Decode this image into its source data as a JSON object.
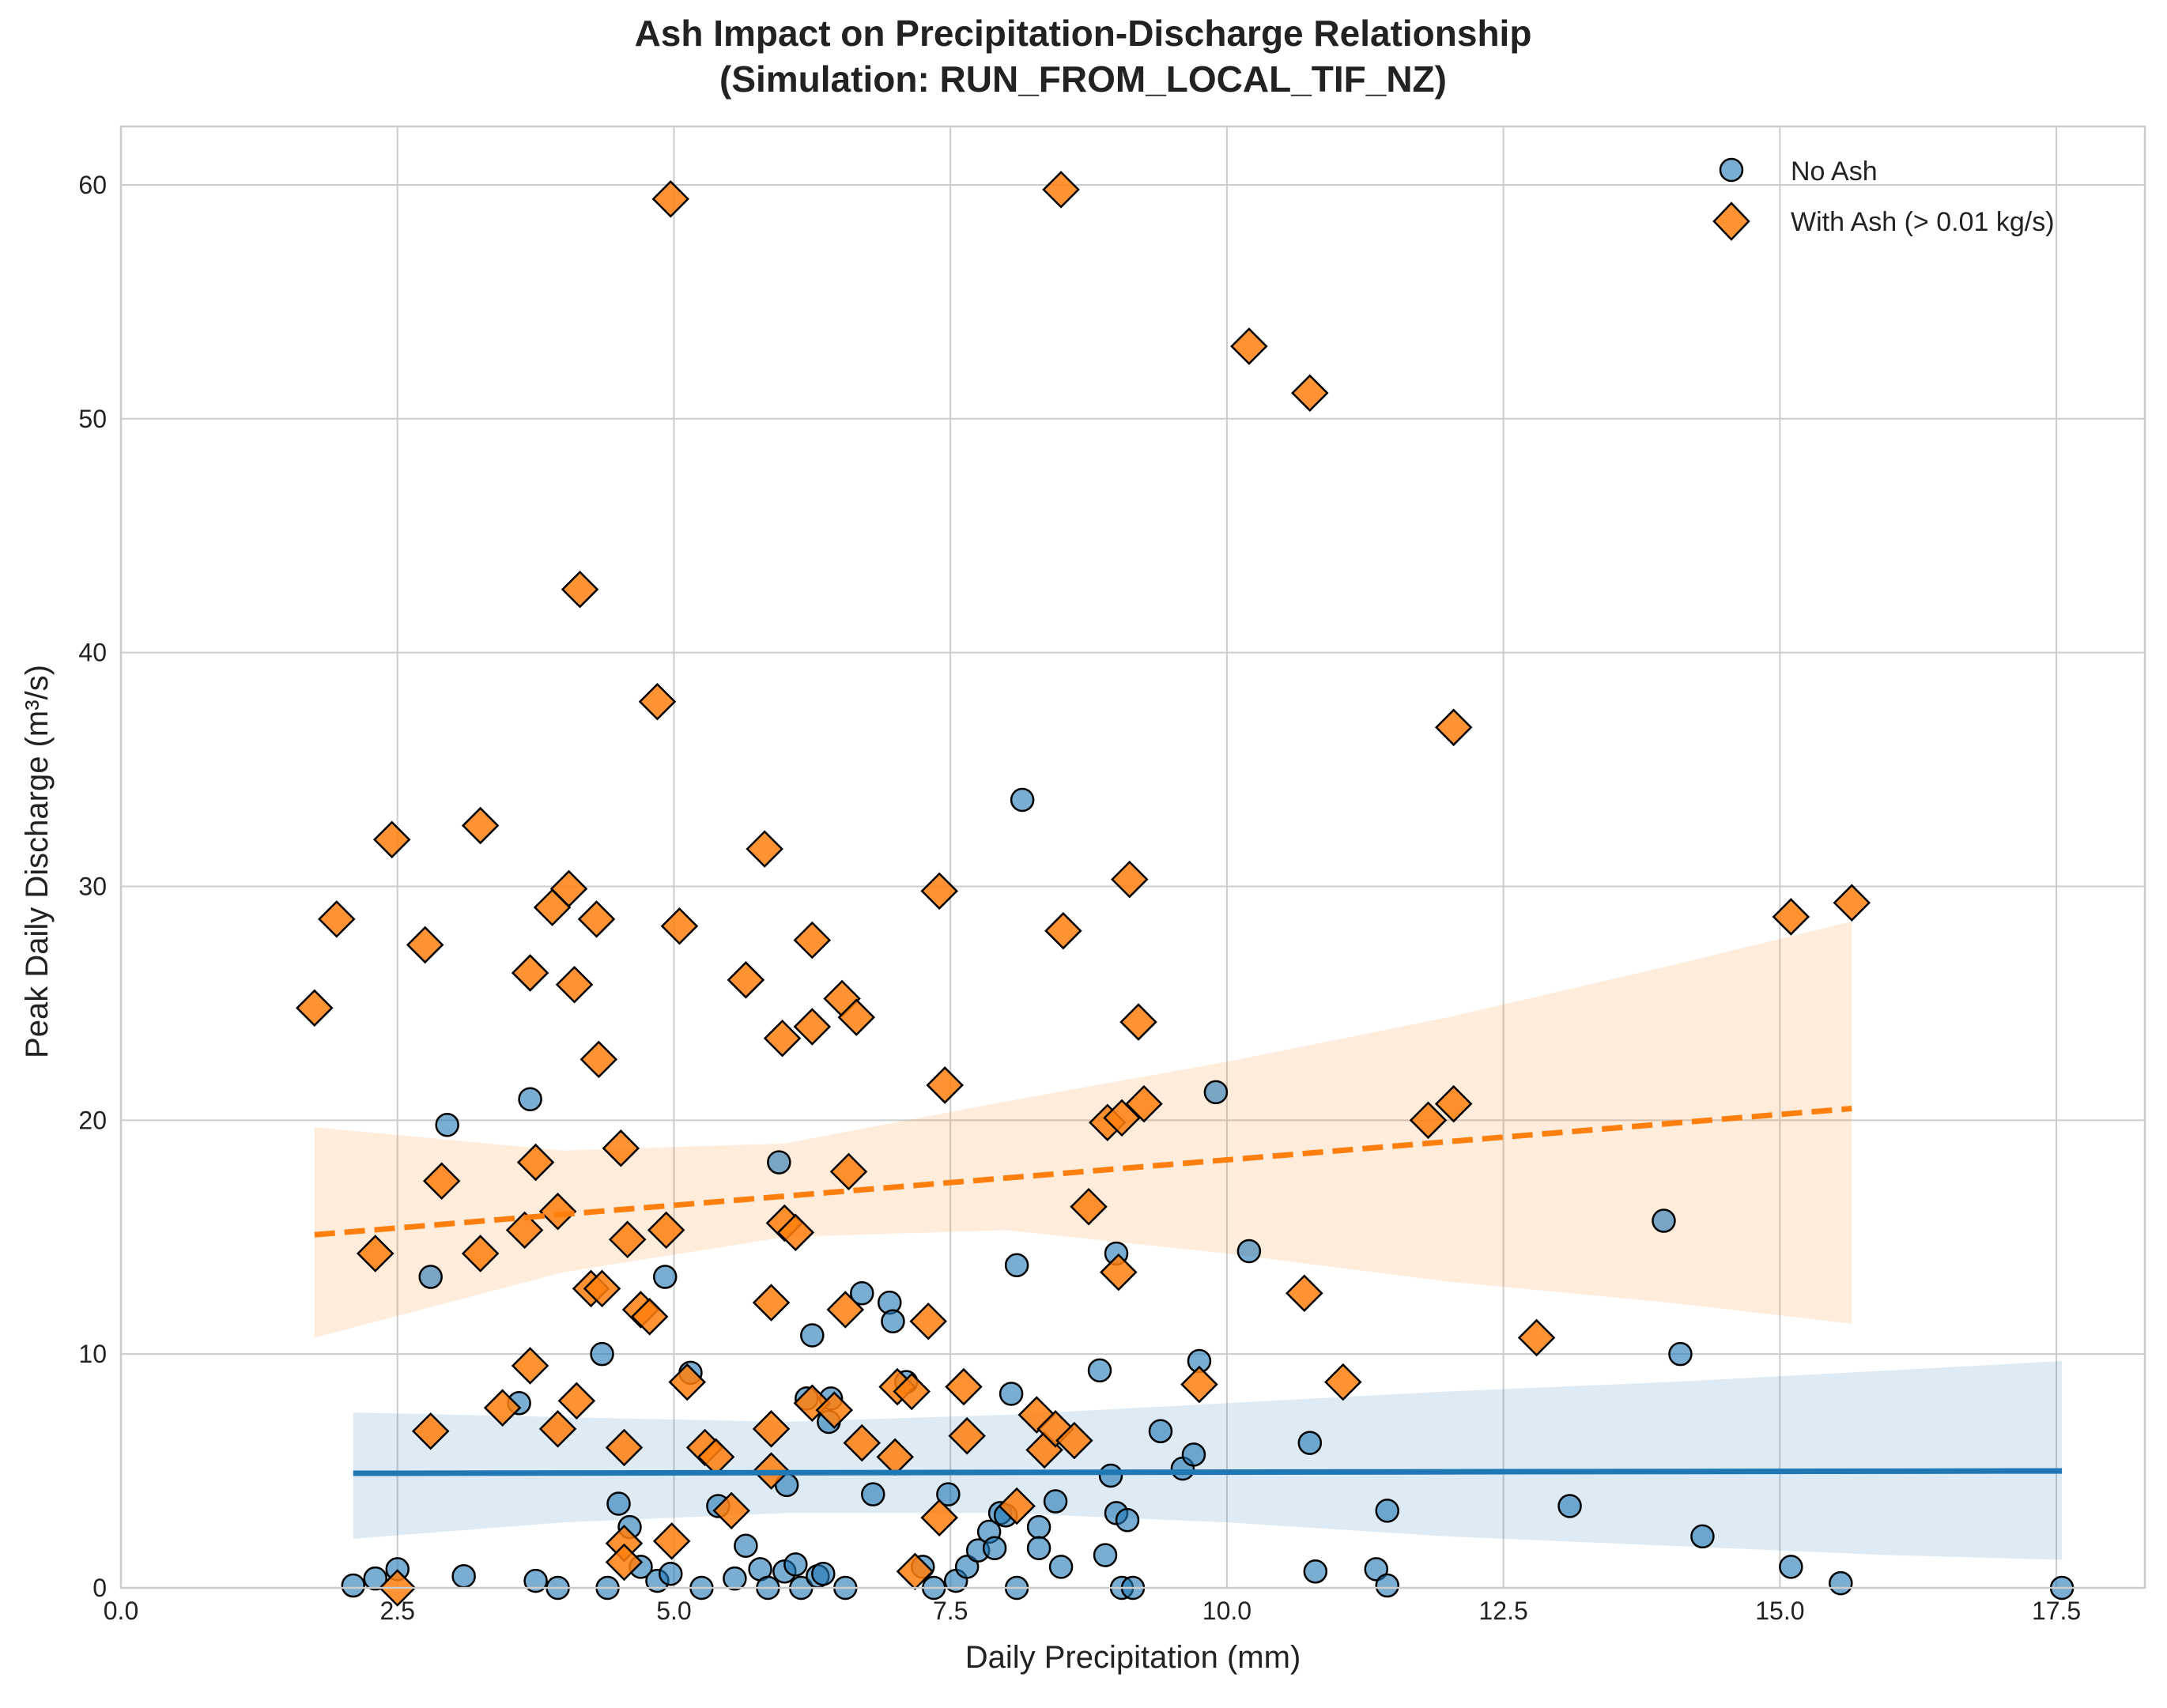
{
  "chart_data": {
    "type": "scatter",
    "title_line1": "Ash Impact on Precipitation-Discharge Relationship",
    "title_line2": "(Simulation: RUN_FROM_LOCAL_TIF_NZ)",
    "xlabel": "Daily Precipitation (mm)",
    "ylabel": "Peak Daily Discharge (m³/s)",
    "xlim": [
      0,
      18.3
    ],
    "ylim": [
      0,
      62.5
    ],
    "xticks": [
      0,
      2.5,
      5,
      7.5,
      10,
      12.5,
      15,
      17.5
    ],
    "xtick_labels": [
      "0.0",
      "2.5",
      "5.0",
      "7.5",
      "10.0",
      "12.5",
      "15.0",
      "17.5"
    ],
    "yticks": [
      0,
      10,
      20,
      30,
      40,
      50,
      60
    ],
    "ytick_labels": [
      "0",
      "10",
      "20",
      "30",
      "40",
      "50",
      "60"
    ],
    "grid": true,
    "legend_position": "top-right",
    "colors": {
      "no_ash": "#1f77b4",
      "with_ash": "#ff7f0e",
      "grid": "#cccccc",
      "text": "#222222"
    },
    "series": [
      {
        "name": "No Ash",
        "marker": "circle",
        "points": [
          [
            2.1,
            0.1
          ],
          [
            2.3,
            0.4
          ],
          [
            2.5,
            0.8
          ],
          [
            2.8,
            13.3
          ],
          [
            2.95,
            19.8
          ],
          [
            3.1,
            0.5
          ],
          [
            3.6,
            7.9
          ],
          [
            3.7,
            20.9
          ],
          [
            3.75,
            0.3
          ],
          [
            3.95,
            0.0
          ],
          [
            4.35,
            10.0
          ],
          [
            4.4,
            0.0
          ],
          [
            4.5,
            3.6
          ],
          [
            4.6,
            2.6
          ],
          [
            4.7,
            0.9
          ],
          [
            4.85,
            0.3
          ],
          [
            4.92,
            13.3
          ],
          [
            4.97,
            0.6
          ],
          [
            5.15,
            9.2
          ],
          [
            5.25,
            0.0
          ],
          [
            5.4,
            3.5
          ],
          [
            5.55,
            0.4
          ],
          [
            5.65,
            1.8
          ],
          [
            5.78,
            0.8
          ],
          [
            5.85,
            0.0
          ],
          [
            5.95,
            18.2
          ],
          [
            6.0,
            0.7
          ],
          [
            6.02,
            4.4
          ],
          [
            6.1,
            1.0
          ],
          [
            6.15,
            0.0
          ],
          [
            6.2,
            8.1
          ],
          [
            6.25,
            10.8
          ],
          [
            6.3,
            0.5
          ],
          [
            6.35,
            0.6
          ],
          [
            6.4,
            7.1
          ],
          [
            6.42,
            8.1
          ],
          [
            6.55,
            0.0
          ],
          [
            6.7,
            12.6
          ],
          [
            6.8,
            4.0
          ],
          [
            6.95,
            12.2
          ],
          [
            6.98,
            11.4
          ],
          [
            7.1,
            8.8
          ],
          [
            7.25,
            0.9
          ],
          [
            7.35,
            0.0
          ],
          [
            7.48,
            4.0
          ],
          [
            7.55,
            0.3
          ],
          [
            7.65,
            0.9
          ],
          [
            7.75,
            1.6
          ],
          [
            7.85,
            2.4
          ],
          [
            7.9,
            1.7
          ],
          [
            7.95,
            3.2
          ],
          [
            8.0,
            3.1
          ],
          [
            8.05,
            8.3
          ],
          [
            8.1,
            13.8
          ],
          [
            8.1,
            0.0
          ],
          [
            8.15,
            33.7
          ],
          [
            8.3,
            2.6
          ],
          [
            8.3,
            1.7
          ],
          [
            8.45,
            3.7
          ],
          [
            8.5,
            0.9
          ],
          [
            8.85,
            9.3
          ],
          [
            8.9,
            1.4
          ],
          [
            8.95,
            4.8
          ],
          [
            9.0,
            14.3
          ],
          [
            9.0,
            3.2
          ],
          [
            9.05,
            0.0
          ],
          [
            9.1,
            2.9
          ],
          [
            9.15,
            0.0
          ],
          [
            9.4,
            6.7
          ],
          [
            9.6,
            5.1
          ],
          [
            9.7,
            5.7
          ],
          [
            9.75,
            9.7
          ],
          [
            9.9,
            21.2
          ],
          [
            10.2,
            14.4
          ],
          [
            10.8,
            0.7
          ],
          [
            10.75,
            6.2
          ],
          [
            11.35,
            0.8
          ],
          [
            11.45,
            3.3
          ],
          [
            11.45,
            0.1
          ],
          [
            13.1,
            3.5
          ],
          [
            13.95,
            15.7
          ],
          [
            14.1,
            10.0
          ],
          [
            14.3,
            2.2
          ],
          [
            15.1,
            0.9
          ],
          [
            15.55,
            0.2
          ],
          [
            17.55,
            0.0
          ]
        ]
      },
      {
        "name": "With Ash (> 0.01 kg/s)",
        "marker": "diamond",
        "points": [
          [
            1.75,
            24.8
          ],
          [
            1.95,
            28.6
          ],
          [
            2.3,
            14.3
          ],
          [
            2.45,
            32.0
          ],
          [
            2.5,
            0.0
          ],
          [
            2.75,
            27.5
          ],
          [
            2.8,
            6.7
          ],
          [
            2.9,
            17.4
          ],
          [
            3.25,
            32.6
          ],
          [
            3.25,
            14.3
          ],
          [
            3.45,
            7.7
          ],
          [
            3.65,
            15.3
          ],
          [
            3.7,
            26.3
          ],
          [
            3.7,
            9.5
          ],
          [
            3.75,
            18.2
          ],
          [
            3.9,
            29.1
          ],
          [
            3.95,
            6.8
          ],
          [
            3.95,
            16.1
          ],
          [
            4.05,
            29.9
          ],
          [
            4.1,
            25.8
          ],
          [
            4.12,
            8.0
          ],
          [
            4.15,
            42.7
          ],
          [
            4.25,
            12.8
          ],
          [
            4.3,
            28.6
          ],
          [
            4.32,
            22.6
          ],
          [
            4.35,
            12.8
          ],
          [
            4.52,
            18.8
          ],
          [
            4.55,
            6.0
          ],
          [
            4.55,
            1.9
          ],
          [
            4.55,
            1.1
          ],
          [
            4.58,
            14.9
          ],
          [
            4.7,
            11.9
          ],
          [
            4.78,
            11.6
          ],
          [
            4.85,
            37.9
          ],
          [
            4.93,
            15.3
          ],
          [
            4.97,
            59.4
          ],
          [
            4.98,
            2.0
          ],
          [
            5.05,
            28.3
          ],
          [
            5.12,
            8.8
          ],
          [
            5.28,
            6.0
          ],
          [
            5.38,
            5.6
          ],
          [
            5.52,
            3.3
          ],
          [
            5.65,
            26.0
          ],
          [
            5.82,
            31.6
          ],
          [
            5.88,
            12.2
          ],
          [
            5.88,
            5.0
          ],
          [
            5.88,
            6.8
          ],
          [
            5.98,
            23.5
          ],
          [
            6.0,
            15.6
          ],
          [
            6.1,
            15.2
          ],
          [
            6.25,
            27.7
          ],
          [
            6.25,
            24.0
          ],
          [
            6.25,
            7.9
          ],
          [
            6.45,
            7.6
          ],
          [
            6.52,
            25.2
          ],
          [
            6.55,
            11.9
          ],
          [
            6.58,
            17.8
          ],
          [
            6.65,
            24.4
          ],
          [
            6.7,
            6.2
          ],
          [
            7.0,
            5.6
          ],
          [
            7.02,
            8.6
          ],
          [
            7.15,
            8.4
          ],
          [
            7.18,
            0.7
          ],
          [
            7.3,
            11.4
          ],
          [
            7.4,
            29.8
          ],
          [
            7.4,
            3.0
          ],
          [
            7.45,
            21.5
          ],
          [
            7.62,
            8.6
          ],
          [
            7.65,
            6.5
          ],
          [
            8.1,
            3.5
          ],
          [
            8.28,
            7.4
          ],
          [
            8.35,
            5.9
          ],
          [
            8.45,
            6.8
          ],
          [
            8.5,
            59.8
          ],
          [
            8.52,
            28.1
          ],
          [
            8.62,
            6.3
          ],
          [
            8.75,
            16.3
          ],
          [
            8.92,
            19.9
          ],
          [
            9.02,
            13.5
          ],
          [
            9.05,
            20.1
          ],
          [
            9.12,
            30.3
          ],
          [
            9.2,
            24.2
          ],
          [
            9.25,
            20.7
          ],
          [
            9.75,
            8.7
          ],
          [
            10.2,
            53.1
          ],
          [
            10.7,
            12.6
          ],
          [
            10.75,
            51.1
          ],
          [
            11.05,
            8.8
          ],
          [
            11.82,
            20.0
          ],
          [
            12.05,
            20.7
          ],
          [
            12.05,
            36.8
          ],
          [
            12.8,
            10.7
          ],
          [
            15.1,
            28.7
          ],
          [
            15.65,
            29.3
          ]
        ]
      }
    ],
    "trend_lines": [
      {
        "series": "No Ash",
        "style": "solid",
        "x_start": 2.1,
        "y_start": 4.9,
        "x_end": 17.55,
        "y_end": 5.0,
        "band_upper": [
          [
            2.1,
            7.5
          ],
          [
            4.0,
            7.3
          ],
          [
            6.0,
            7.1
          ],
          [
            8.0,
            7.4
          ],
          [
            10.0,
            7.9
          ],
          [
            12.0,
            8.4
          ],
          [
            14.0,
            8.8
          ],
          [
            16.0,
            9.3
          ],
          [
            17.55,
            9.7
          ]
        ],
        "band_lower": [
          [
            2.1,
            2.1
          ],
          [
            4.0,
            2.8
          ],
          [
            6.0,
            3.2
          ],
          [
            8.0,
            3.2
          ],
          [
            10.0,
            2.8
          ],
          [
            12.0,
            2.2
          ],
          [
            14.0,
            1.8
          ],
          [
            16.0,
            1.4
          ],
          [
            17.55,
            1.2
          ]
        ]
      },
      {
        "series": "With Ash (> 0.01 kg/s)",
        "style": "dashed",
        "x_start": 1.75,
        "y_start": 15.1,
        "x_end": 15.65,
        "y_end": 20.5,
        "band_upper": [
          [
            1.75,
            19.7
          ],
          [
            4.0,
            18.7
          ],
          [
            6.0,
            19.0
          ],
          [
            8.0,
            20.8
          ],
          [
            10.0,
            22.5
          ],
          [
            12.0,
            24.4
          ],
          [
            14.0,
            26.6
          ],
          [
            15.65,
            28.5
          ]
        ],
        "band_lower": [
          [
            1.75,
            10.7
          ],
          [
            4.0,
            13.5
          ],
          [
            6.0,
            15.0
          ],
          [
            8.0,
            15.3
          ],
          [
            10.0,
            14.3
          ],
          [
            12.0,
            13.1
          ],
          [
            14.0,
            12.2
          ],
          [
            15.65,
            11.3
          ]
        ]
      }
    ]
  }
}
